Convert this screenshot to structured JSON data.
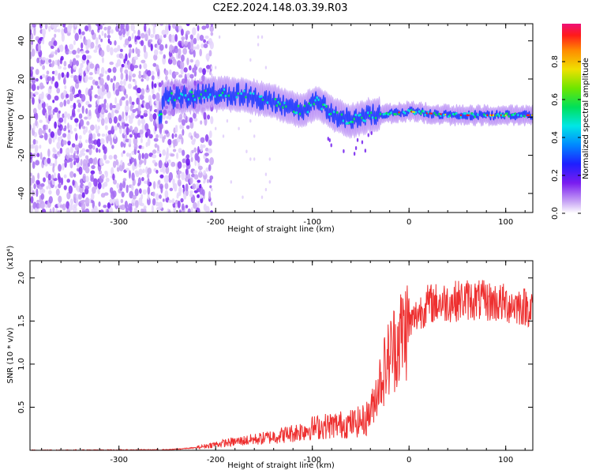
{
  "figure": {
    "title": "C2E2.2024.148.03.39.R03"
  },
  "colors": {
    "snr_line": "#ee3030",
    "spec_low": "#8a3cf0",
    "spec_band": "#1a3cff",
    "spec_mid": "#00e0e0",
    "spec_high": "#ff1a1a"
  },
  "chart_data": [
    {
      "type": "heatmap",
      "title": "",
      "xlabel": "Height of straight line (km)",
      "ylabel": "Frequency (Hz)",
      "xlim": [
        -392,
        128
      ],
      "ylim": [
        -50,
        49
      ],
      "xticks": [
        -300,
        -200,
        -100,
        0,
        100
      ],
      "xtick_labels": [
        "-300",
        "-200",
        "-100",
        "0",
        "100"
      ],
      "yticks": [
        -40,
        -20,
        0,
        20,
        40
      ],
      "ytick_labels": [
        "-40",
        "-20",
        "0",
        "20",
        "40"
      ],
      "colorbar": {
        "label": "Normalized spectral amplitude",
        "range": [
          0,
          1
        ],
        "ticks": [
          0.0,
          0.2,
          0.4,
          0.6,
          0.8
        ],
        "tick_labels": [
          "0.0",
          "0.2",
          "0.4",
          "0.6",
          "0.8"
        ]
      },
      "features": {
        "noise_region_x": [
          -392,
          -205
        ],
        "signal_band_center_hz": [
          [
            -255,
            10
          ],
          [
            -230,
            11
          ],
          [
            -200,
            12
          ],
          [
            -170,
            12
          ],
          [
            -140,
            8
          ],
          [
            -110,
            3
          ],
          [
            -95,
            8
          ],
          [
            -80,
            2
          ],
          [
            -60,
            -2
          ],
          [
            -40,
            1
          ],
          [
            -20,
            2
          ],
          [
            0,
            3
          ],
          [
            20,
            2
          ],
          [
            50,
            1
          ],
          [
            80,
            1
          ],
          [
            110,
            1
          ],
          [
            128,
            1
          ]
        ]
      }
    },
    {
      "type": "line",
      "title": "",
      "xlabel": "Height of straight line (km)",
      "ylabel": "SNR (10 * v/v)",
      "y_multiplier": "(x10⁴)",
      "xlim": [
        -392,
        128
      ],
      "ylim": [
        0,
        22000
      ],
      "xticks": [
        -300,
        -200,
        -100,
        0,
        100
      ],
      "xtick_labels": [
        "-300",
        "-200",
        "-100",
        "0",
        "100"
      ],
      "yticks": [
        5000,
        10000,
        15000,
        20000
      ],
      "ytick_labels": [
        "0.5",
        "1.0",
        "1.5",
        "2.0"
      ],
      "series": [
        {
          "x": [
            -392,
            -300,
            -250,
            -220,
            -200,
            -180,
            -150,
            -120,
            -100,
            -80,
            -60,
            -45,
            -38,
            -32,
            -25,
            -18,
            -10,
            -5,
            0,
            10,
            20,
            40,
            60,
            80,
            100,
            115,
            128
          ],
          "y": [
            0,
            30,
            50,
            300,
            700,
            1000,
            1400,
            2000,
            2600,
            2900,
            3100,
            3500,
            5000,
            7500,
            9500,
            11500,
            13000,
            14000,
            14500,
            16000,
            17000,
            17200,
            17500,
            17300,
            17000,
            16800,
            16500
          ]
        }
      ]
    }
  ]
}
